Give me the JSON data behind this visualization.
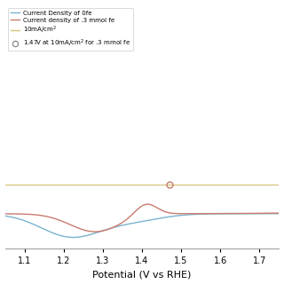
{
  "title": "",
  "xlabel": "Potential (V vs RHE)",
  "ylabel": "",
  "xlim": [
    1.05,
    1.75
  ],
  "ylim": [
    -15,
    80
  ],
  "xticks": [
    1.1,
    1.2,
    1.3,
    1.4,
    1.5,
    1.6,
    1.7
  ],
  "color_0fe": "#7ab3d0",
  "color_03fe": "#c97b6e",
  "color_10ma": "#d4c47a",
  "color_marker": "#c97b6e",
  "marker_x": 1.47,
  "marker_y": 10,
  "hline_y": 10,
  "legend_labels": [
    "Current Density of 0fe",
    "Current density of .3 mmol fe",
    "10mA/cm$^2$",
    "1.47V at 10mA/cm$^2$ for .3 mmol fe"
  ],
  "background_color": "#ffffff"
}
